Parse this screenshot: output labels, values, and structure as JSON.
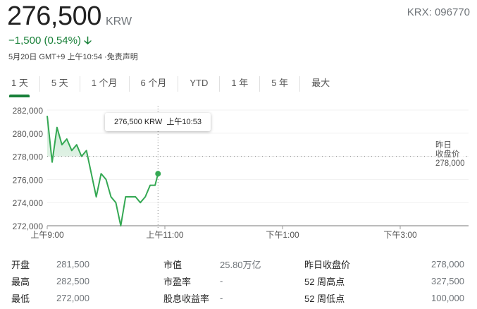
{
  "header": {
    "price": "276,500",
    "currency": "KRW",
    "ticker": "KRX: 096770",
    "change": "−1,500 (0.54%)",
    "change_direction": "down",
    "meta": "5月20日 GMT+9 上午10:54 ·免责声明"
  },
  "tabs": [
    {
      "label": "1 天",
      "active": true
    },
    {
      "label": "5 天"
    },
    {
      "label": "1 个月"
    },
    {
      "label": "6 个月"
    },
    {
      "label": "YTD"
    },
    {
      "label": "1 年"
    },
    {
      "label": "5 年"
    },
    {
      "label": "最大"
    }
  ],
  "colors": {
    "up_down_accent": "#188038",
    "line": "#34a853"
  },
  "tooltip": {
    "text": "276,500 KRW  上午10:53"
  },
  "prev_close_label": {
    "line1": "昨日",
    "line2": "收盘价",
    "value": "278,000"
  },
  "chart_data": {
    "type": "line",
    "x_ticks": [
      {
        "t": "09:00",
        "label": "上午9:00"
      },
      {
        "t": "11:00",
        "label": "上午11:00"
      },
      {
        "t": "13:00",
        "label": "下午1:00"
      },
      {
        "t": "15:00",
        "label": "下午3:00"
      }
    ],
    "y_ticks": [
      272000,
      274000,
      276000,
      278000,
      280000,
      282000
    ],
    "y_tick_labels": [
      "272,000",
      "274,000",
      "276,000",
      "278,000",
      "280,000",
      "282,000"
    ],
    "ylim": [
      272000,
      282000
    ],
    "previous_close": 278000,
    "grid": true,
    "series": [
      {
        "points": [
          [
            "09:00",
            281500
          ],
          [
            "09:05",
            277500
          ],
          [
            "09:10",
            280500
          ],
          [
            "09:15",
            279000
          ],
          [
            "09:20",
            279500
          ],
          [
            "09:25",
            278500
          ],
          [
            "09:30",
            279000
          ],
          [
            "09:35",
            278000
          ],
          [
            "09:40",
            278500
          ],
          [
            "09:50",
            274500
          ],
          [
            "09:55",
            276500
          ],
          [
            "10:00",
            276000
          ],
          [
            "10:05",
            274500
          ],
          [
            "10:10",
            274000
          ],
          [
            "10:15",
            272000
          ],
          [
            "10:20",
            274500
          ],
          [
            "10:30",
            274500
          ],
          [
            "10:35",
            274000
          ],
          [
            "10:40",
            274500
          ],
          [
            "10:45",
            275500
          ],
          [
            "10:50",
            275500
          ],
          [
            "10:53",
            276500
          ]
        ]
      }
    ]
  },
  "stats": [
    [
      {
        "k": "开盘",
        "v": "281,500"
      },
      {
        "k": "市值",
        "v": "25.80万亿"
      },
      {
        "k": "昨日收盘价",
        "v": "278,000"
      }
    ],
    [
      {
        "k": "最高",
        "v": "282,500"
      },
      {
        "k": "市盈率",
        "v": "-"
      },
      {
        "k": "52 周高点",
        "v": "327,500"
      }
    ],
    [
      {
        "k": "最低",
        "v": "272,000"
      },
      {
        "k": "股息收益率",
        "v": "-"
      },
      {
        "k": "52 周低点",
        "v": "100,000"
      }
    ]
  ]
}
